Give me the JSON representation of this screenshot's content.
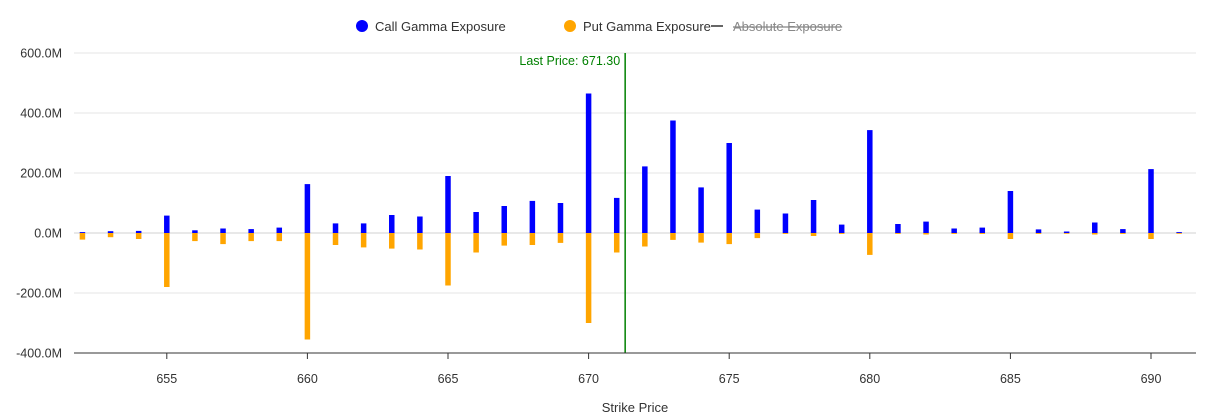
{
  "chart_data": {
    "type": "bar",
    "xlabel": "Strike Price",
    "ylabel": "",
    "ylim": [
      -400000000,
      600000000
    ],
    "xlim": [
      651.7,
      691.6
    ],
    "y_ticks": [
      {
        "value": 600000000,
        "label": "600.0M"
      },
      {
        "value": 400000000,
        "label": "400.0M"
      },
      {
        "value": 200000000,
        "label": "200.0M"
      },
      {
        "value": 0,
        "label": "0.0M"
      },
      {
        "value": -200000000,
        "label": "-200.0M"
      },
      {
        "value": -400000000,
        "label": "-400.0M"
      }
    ],
    "x_ticks": [
      {
        "value": 655,
        "label": "655"
      },
      {
        "value": 660,
        "label": "660"
      },
      {
        "value": 665,
        "label": "665"
      },
      {
        "value": 670,
        "label": "670"
      },
      {
        "value": 675,
        "label": "675"
      },
      {
        "value": 680,
        "label": "680"
      },
      {
        "value": 685,
        "label": "685"
      },
      {
        "value": 690,
        "label": "690"
      }
    ],
    "grid": true,
    "legend_position": "top-center",
    "legend": [
      {
        "name": "Call Gamma Exposure",
        "color": "#0000ff",
        "marker": "circle",
        "enabled": true
      },
      {
        "name": "Put Gamma Exposure",
        "color": "#ffa500",
        "marker": "circle",
        "enabled": true
      },
      {
        "name": "Absolute Exposure",
        "color": "#666666",
        "marker": "line",
        "enabled": false
      }
    ],
    "strikes": [
      652,
      653,
      654,
      655,
      656,
      657,
      658,
      659,
      660,
      661,
      662,
      663,
      664,
      665,
      666,
      667,
      668,
      669,
      670,
      671,
      672,
      673,
      674,
      675,
      676,
      677,
      678,
      679,
      680,
      681,
      682,
      683,
      684,
      685,
      686,
      687,
      688,
      689,
      690,
      691
    ],
    "series": [
      {
        "name": "Call Gamma Exposure",
        "color": "#0000ff",
        "values": [
          3000000,
          6000000,
          7000000,
          58000000,
          9000000,
          15000000,
          13000000,
          18000000,
          163000000,
          32000000,
          32000000,
          60000000,
          55000000,
          190000000,
          70000000,
          90000000,
          107000000,
          100000000,
          465000000,
          117000000,
          222000000,
          375000000,
          152000000,
          300000000,
          78000000,
          65000000,
          110000000,
          28000000,
          343000000,
          30000000,
          38000000,
          15000000,
          18000000,
          140000000,
          12000000,
          5000000,
          35000000,
          13000000,
          213000000,
          3000000
        ]
      },
      {
        "name": "Put Gamma Exposure",
        "color": "#ffa500",
        "values": [
          -22000000,
          -14000000,
          -20000000,
          -180000000,
          -27000000,
          -37000000,
          -27000000,
          -27000000,
          -355000000,
          -40000000,
          -48000000,
          -52000000,
          -55000000,
          -175000000,
          -65000000,
          -42000000,
          -40000000,
          -33000000,
          -300000000,
          -65000000,
          -45000000,
          -23000000,
          -32000000,
          -37000000,
          -17000000,
          -3000000,
          -10000000,
          -3000000,
          -73000000,
          -3000000,
          -5000000,
          -3000000,
          -3000000,
          -20000000,
          -3000000,
          -2000000,
          -5000000,
          -3000000,
          -20000000,
          -2000000
        ]
      }
    ],
    "annotations": [
      {
        "type": "vertical-line",
        "x": 671.3,
        "label": "Last Price: 671.30",
        "color": "#008000"
      }
    ]
  }
}
